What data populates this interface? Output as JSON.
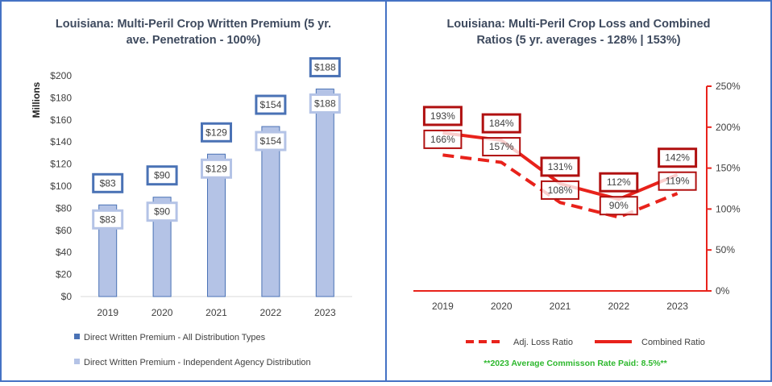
{
  "chart_data": [
    {
      "type": "bar",
      "title_line1": "Louisiana: Multi-Peril Crop Written Premium (5 yr.",
      "title_line2": "ave. Penetration - 100%)",
      "ylabel": "Millions",
      "ylim": [
        0,
        200
      ],
      "y_ticks": [
        0,
        20,
        40,
        60,
        80,
        100,
        120,
        140,
        160,
        180,
        200
      ],
      "y_tick_labels": [
        "$0",
        "$20",
        "$40",
        "$60",
        "$80",
        "$100",
        "$120",
        "$140",
        "$160",
        "$180",
        "$200"
      ],
      "categories": [
        "2019",
        "2020",
        "2021",
        "2022",
        "2023"
      ],
      "series": [
        {
          "name": "Direct Written Premium - All Distribution Types",
          "values": [
            83,
            90,
            129,
            154,
            188
          ],
          "labels": [
            "$83",
            "$90",
            "$129",
            "$154",
            "$188"
          ],
          "color": "#4A72B5"
        },
        {
          "name": "Direct Written Premium - Independent Agency Distribution",
          "values": [
            83,
            90,
            129,
            154,
            188
          ],
          "labels": [
            "$83",
            "$90",
            "$129",
            "$154",
            "$188"
          ],
          "color": "#B4C3E6"
        }
      ],
      "grid": false,
      "legend_position": "bottom"
    },
    {
      "type": "line",
      "title_line1": "Louisiana: Multi-Peril Crop Loss and Combined",
      "title_line2": "Ratios (5 yr. averages - 128% | 153%)",
      "ylim": [
        0,
        250
      ],
      "y_ticks": [
        0,
        50,
        100,
        150,
        200,
        250
      ],
      "y_tick_labels": [
        "0%",
        "50%",
        "100%",
        "150%",
        "200%",
        "250%"
      ],
      "y_axis_side": "right",
      "categories": [
        "2019",
        "2020",
        "2021",
        "2022",
        "2023"
      ],
      "series": [
        {
          "name": "Adj. Loss Ratio",
          "values": [
            166,
            157,
            108,
            90,
            119
          ],
          "labels": [
            "166%",
            "157%",
            "108%",
            "90%",
            "119%"
          ],
          "style": "dashed",
          "color": "#E8221B"
        },
        {
          "name": "Combined Ratio",
          "values": [
            193,
            184,
            131,
            112,
            142
          ],
          "labels": [
            "193%",
            "184%",
            "131%",
            "112%",
            "142%"
          ],
          "style": "solid",
          "color": "#E8221B"
        }
      ],
      "legend_position": "bottom",
      "footnote": "**2023 Average Commisson Rate Paid: 8.5%**"
    }
  ]
}
